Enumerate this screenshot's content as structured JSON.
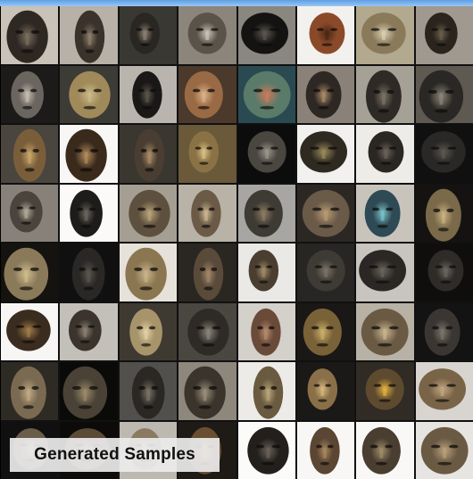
{
  "caption": {
    "text": "Generated Samples"
  },
  "grid": {
    "rows": 8,
    "cols": 8,
    "subject": "mask",
    "tiles": [
      {
        "bg": "#c9c2b8",
        "face": "#2e2823",
        "accent": "#7a6d5e"
      },
      {
        "bg": "#b8b1a7",
        "face": "#3a322b",
        "accent": "#8c7d6a"
      },
      {
        "bg": "#3a3833",
        "face": "#2a2723",
        "accent": "#8a8070"
      },
      {
        "bg": "#8c857b",
        "face": "#5b524a",
        "accent": "#c8c2b8"
      },
      {
        "bg": "#8a8680",
        "face": "#141312",
        "accent": "#5a5550"
      },
      {
        "bg": "#f3f1ee",
        "face": "#8a4a2a",
        "accent": "#4a2614"
      },
      {
        "bg": "#b2a98e",
        "face": "#8a7a5a",
        "accent": "#d8cfb0"
      },
      {
        "bg": "#9f9990",
        "face": "#2a241d",
        "accent": "#6a5c4a"
      },
      {
        "bg": "#1c1b1a",
        "face": "#6a655e",
        "accent": "#c4bcb0"
      },
      {
        "bg": "#3d3b36",
        "face": "#a08a5a",
        "accent": "#cbb98a"
      },
      {
        "bg": "#b9b5ae",
        "face": "#1a1816",
        "accent": "#5a544c"
      },
      {
        "bg": "#4b3a2c",
        "face": "#9a6a44",
        "accent": "#d8b088"
      },
      {
        "bg": "#2a4a52",
        "face": "#5a7a6a",
        "accent": "#c97a5a"
      },
      {
        "bg": "#8a8278",
        "face": "#2e2824",
        "accent": "#a88a66"
      },
      {
        "bg": "#a6a196",
        "face": "#2e2b26",
        "accent": "#7a7266"
      },
      {
        "bg": "#5e5a52",
        "face": "#2a2824",
        "accent": "#8a8478"
      },
      {
        "bg": "#4a453e",
        "face": "#7a5e3a",
        "accent": "#c8a46a"
      },
      {
        "bg": "#f8f7f5",
        "face": "#3a2a1c",
        "accent": "#b08a5a"
      },
      {
        "bg": "#3a3630",
        "face": "#4a3e32",
        "accent": "#a88c66"
      },
      {
        "bg": "#6a5a3a",
        "face": "#8a7244",
        "accent": "#d6bf84"
      },
      {
        "bg": "#0d0c0c",
        "face": "#4a4640",
        "accent": "#9a948a"
      },
      {
        "bg": "#f2f1ef",
        "face": "#2e2a22",
        "accent": "#9a8a5a"
      },
      {
        "bg": "#eeece9",
        "face": "#2a2622",
        "accent": "#6a625a"
      },
      {
        "bg": "#111010",
        "face": "#2a2826",
        "accent": "#5a5650"
      },
      {
        "bg": "#878179",
        "face": "#4a443c",
        "accent": "#b0a898"
      },
      {
        "bg": "#fbfaf9",
        "face": "#1e1c1a",
        "accent": "#6a645c"
      },
      {
        "bg": "#a59e92",
        "face": "#5e503e",
        "accent": "#b8a27a"
      },
      {
        "bg": "#b9b2a6",
        "face": "#6a5a46",
        "accent": "#c8b490"
      },
      {
        "bg": "#a7a6a2",
        "face": "#3e3a34",
        "accent": "#8a7a60"
      },
      {
        "bg": "#2b2824",
        "face": "#6a5a48",
        "accent": "#b89a74"
      },
      {
        "bg": "#c8c4bc",
        "face": "#2e4a54",
        "accent": "#7ac0c8"
      },
      {
        "bg": "#141311",
        "face": "#7a6a4a",
        "accent": "#c8b080"
      },
      {
        "bg": "#141310",
        "face": "#8a7a5a",
        "accent": "#cdbb8a"
      },
      {
        "bg": "#111010",
        "face": "#2a2826",
        "accent": "#5a554e"
      },
      {
        "bg": "#e6e2da",
        "face": "#8a7650",
        "accent": "#c8b28a"
      },
      {
        "bg": "#2a2622",
        "face": "#5a4a3a",
        "accent": "#a0866a"
      },
      {
        "bg": "#ebe9e6",
        "face": "#4a3e30",
        "accent": "#a08a66"
      },
      {
        "bg": "#282624",
        "face": "#3e3a34",
        "accent": "#7a7266"
      },
      {
        "bg": "#c8c5c0",
        "face": "#2a2724",
        "accent": "#6a645c"
      },
      {
        "bg": "#0f0e0d",
        "face": "#2e2b28",
        "accent": "#6a655e"
      },
      {
        "bg": "#f7f6f4",
        "face": "#3a2c1e",
        "accent": "#a07a4a"
      },
      {
        "bg": "#c3c0ba",
        "face": "#3a342c",
        "accent": "#8a8070"
      },
      {
        "bg": "#3e3a32",
        "face": "#a8946a",
        "accent": "#e0d0a4"
      },
      {
        "bg": "#4a4640",
        "face": "#2e2a26",
        "accent": "#8a847a"
      },
      {
        "bg": "#d4d0ca",
        "face": "#6a4a38",
        "accent": "#b48a6a"
      },
      {
        "bg": "#1a1816",
        "face": "#7a6238",
        "accent": "#c8ae6a"
      },
      {
        "bg": "#b7b1a6",
        "face": "#6a5a44",
        "accent": "#c8b48e"
      },
      {
        "bg": "#141313",
        "face": "#3a3632",
        "accent": "#7a746a"
      },
      {
        "bg": "#2e2a24",
        "face": "#7a6a52",
        "accent": "#c0aa84"
      },
      {
        "bg": "#0a0a09",
        "face": "#4a4236",
        "accent": "#9a8a6a"
      },
      {
        "bg": "#52504c",
        "face": "#2a2724",
        "accent": "#7a7266"
      },
      {
        "bg": "#8e877c",
        "face": "#3a342c",
        "accent": "#9a8e7a"
      },
      {
        "bg": "#ecebe8",
        "face": "#6a5a40",
        "accent": "#b8a47a"
      },
      {
        "bg": "#1a1917",
        "face": "#8a7048",
        "accent": "#d4b47a"
      },
      {
        "bg": "#302b24",
        "face": "#5e4a2e",
        "accent": "#e0b040"
      },
      {
        "bg": "#d8d5d0",
        "face": "#7a6448",
        "accent": "#c0a680"
      },
      {
        "bg": "#111010",
        "face": "#6a5e4a",
        "accent": "#b8a684"
      },
      {
        "bg": "#0c0b0a",
        "face": "#5a4a36",
        "accent": "#a88a66"
      },
      {
        "bg": "#bdb8b0",
        "face": "#8a7a62",
        "accent": "#d8c8a8"
      },
      {
        "bg": "#1e1a16",
        "face": "#6a4e32",
        "accent": "#b88a5a"
      },
      {
        "bg": "#fbfbfa",
        "face": "#221f1c",
        "accent": "#6a625a"
      },
      {
        "bg": "#f8f7f6",
        "face": "#5a4632",
        "accent": "#a88660"
      },
      {
        "bg": "#f9f8f7",
        "face": "#4a3e30",
        "accent": "#a08c6a"
      },
      {
        "bg": "#e7e5e2",
        "face": "#6a5a44",
        "accent": "#b8a07a"
      }
    ]
  }
}
